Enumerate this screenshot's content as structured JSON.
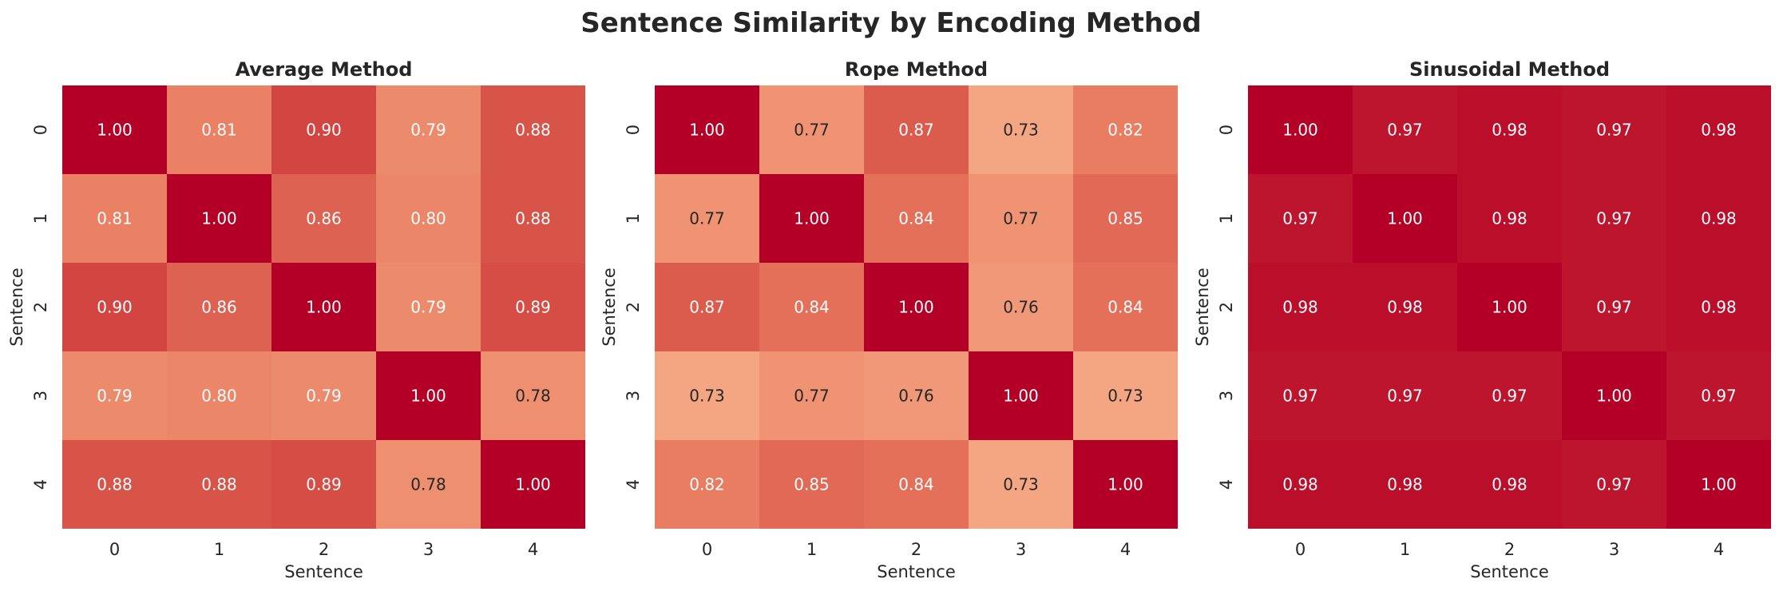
{
  "title": "Sentence Similarity by Encoding Method",
  "chart_data": [
    {
      "type": "heatmap",
      "title": "Average Method",
      "xlabel": "Sentence",
      "ylabel": "Sentence",
      "x": [
        "0",
        "1",
        "2",
        "3",
        "4"
      ],
      "y": [
        "0",
        "1",
        "2",
        "3",
        "4"
      ],
      "values": [
        [
          1.0,
          0.81,
          0.9,
          0.79,
          0.88
        ],
        [
          0.81,
          1.0,
          0.86,
          0.8,
          0.88
        ],
        [
          0.9,
          0.86,
          1.0,
          0.79,
          0.89
        ],
        [
          0.79,
          0.8,
          0.79,
          1.0,
          0.78
        ],
        [
          0.88,
          0.88,
          0.89,
          0.78,
          1.0
        ]
      ],
      "colorbar": false,
      "colormap": "coolwarm"
    },
    {
      "type": "heatmap",
      "title": "Rope Method",
      "xlabel": "Sentence",
      "ylabel": "Sentence",
      "x": [
        "0",
        "1",
        "2",
        "3",
        "4"
      ],
      "y": [
        "0",
        "1",
        "2",
        "3",
        "4"
      ],
      "values": [
        [
          1.0,
          0.77,
          0.87,
          0.73,
          0.82
        ],
        [
          0.77,
          1.0,
          0.84,
          0.77,
          0.85
        ],
        [
          0.87,
          0.84,
          1.0,
          0.76,
          0.84
        ],
        [
          0.73,
          0.77,
          0.76,
          1.0,
          0.73
        ],
        [
          0.82,
          0.85,
          0.84,
          0.73,
          1.0
        ]
      ],
      "colorbar": false,
      "colormap": "coolwarm"
    },
    {
      "type": "heatmap",
      "title": "Sinusoidal Method",
      "xlabel": "Sentence",
      "ylabel": "Sentence",
      "x": [
        "0",
        "1",
        "2",
        "3",
        "4"
      ],
      "y": [
        "0",
        "1",
        "2",
        "3",
        "4"
      ],
      "values": [
        [
          1.0,
          0.97,
          0.98,
          0.97,
          0.98
        ],
        [
          0.97,
          1.0,
          0.98,
          0.97,
          0.98
        ],
        [
          0.98,
          0.98,
          1.0,
          0.97,
          0.98
        ],
        [
          0.97,
          0.97,
          0.97,
          1.0,
          0.97
        ],
        [
          0.98,
          0.98,
          0.98,
          0.97,
          1.0
        ]
      ],
      "colorbar": false,
      "colormap": "coolwarm"
    }
  ]
}
